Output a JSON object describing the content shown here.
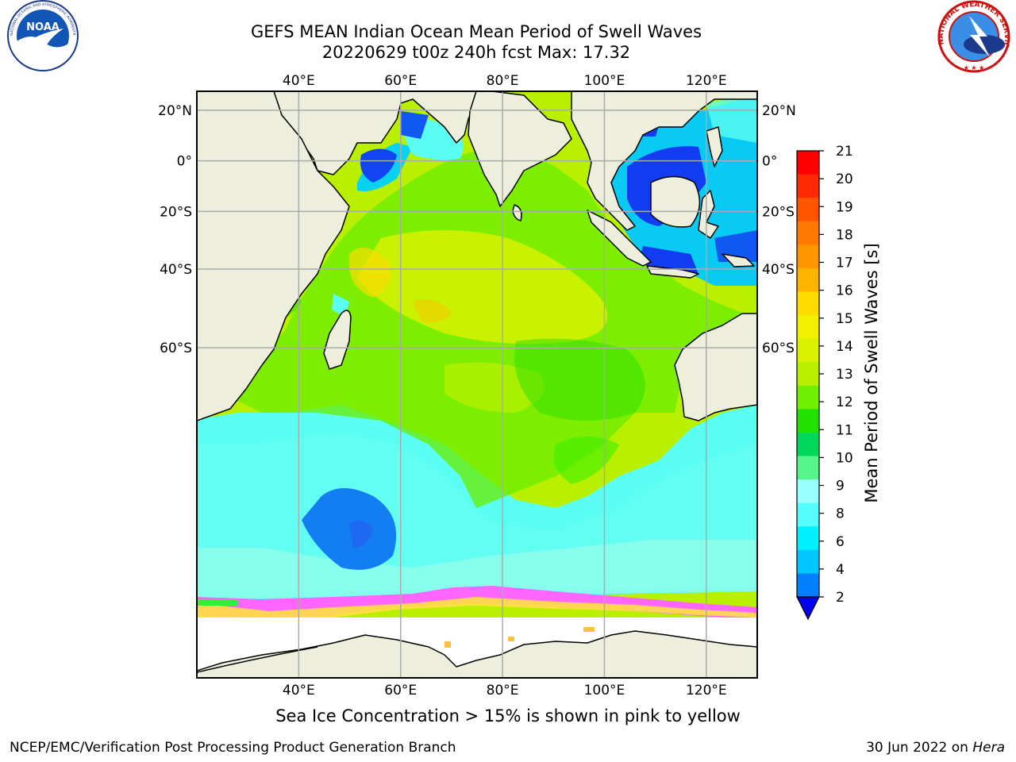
{
  "title": {
    "line1": "GEFS MEAN Indian Ocean Mean Period of Swell Waves",
    "line2": "20220629 t00z 240h fcst   Max: 17.32"
  },
  "caption": "Sea Ice Concentration > 15% is shown in pink to yellow",
  "footer": {
    "left": "NCEP/EMC/Verification Post Processing Product Generation Branch",
    "date": "30 Jun 2022 on ",
    "machine": "Hera"
  },
  "logos": {
    "noaa_text": "NOAA",
    "noaa_ring": "NATIONAL OCEANIC AND ATMOSPHERIC ADMINISTRATION · U.S. DEPARTMENT OF COMMERCE",
    "nws_ring": "NATIONAL WEATHER SERVICE"
  },
  "map": {
    "lon_range": [
      20,
      130
    ],
    "lat_range": [
      -87,
      27
    ],
    "lon_ticks": [
      "40°E",
      "60°E",
      "80°E",
      "100°E",
      "120°E"
    ],
    "lat_ticks": [
      "20°N",
      "0°",
      "20°S",
      "40°S",
      "60°S"
    ],
    "colors": {
      "land": "#eeeedd",
      "ice": "#ffffff",
      "grid": "#aaaaaa",
      "coast": "#000000"
    }
  },
  "colorbar": {
    "label": "Mean Period of Swell Waves [s]",
    "ticks": [
      "21",
      "20",
      "19",
      "18",
      "17",
      "16",
      "15",
      "14",
      "13",
      "12",
      "11",
      "10",
      "9",
      "8",
      "6",
      "4",
      "2"
    ],
    "colors": [
      "#ff0000",
      "#ff2a00",
      "#ff5500",
      "#ff7800",
      "#ff9600",
      "#ffb400",
      "#ffdc00",
      "#f0f000",
      "#d8f200",
      "#b8f000",
      "#6ef000",
      "#22e000",
      "#00d85a",
      "#55f58c",
      "#99ffff",
      "#55ffff",
      "#00f0ff",
      "#00c8ff",
      "#007fff"
    ],
    "underflow_color": "#0000ee"
  }
}
